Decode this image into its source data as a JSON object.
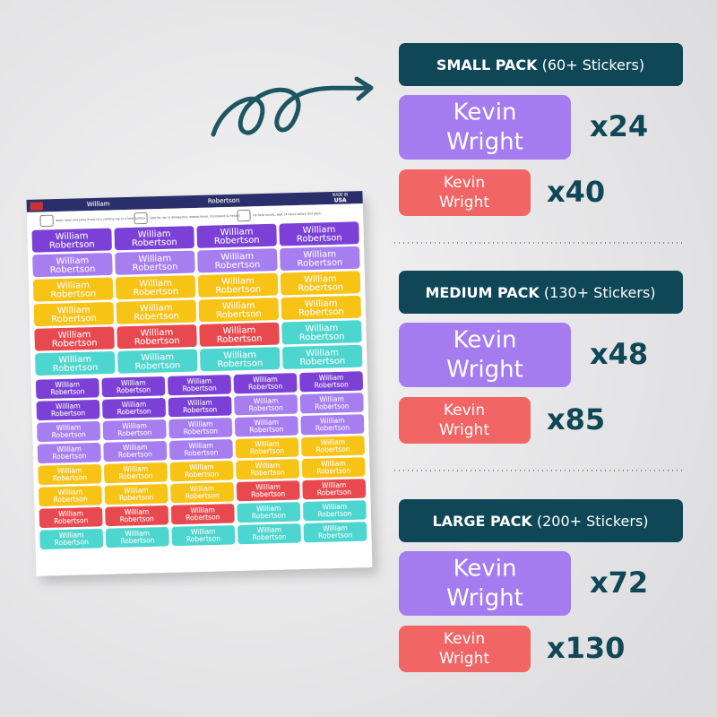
{
  "sheet": {
    "header_first": "William",
    "header_last": "Robertson",
    "made_in": "MADE IN",
    "usa": "USA",
    "instructions": [
      "Apply label and press firmly to a clothing tag or a hard surface.",
      "Safe for use in dishwasher, washer/dryer, microwave & freezer.",
      "For best results, wait 24 hours before first wash."
    ],
    "sticker_first": "William",
    "sticker_last": "Robertson"
  },
  "packs": [
    {
      "name": "SMALL PACK",
      "note": "(60+ Stickers)",
      "items": [
        {
          "first": "Kevin",
          "last": "Wright",
          "count": "x24"
        },
        {
          "first": "Kevin",
          "last": "Wright",
          "count": "x40"
        }
      ]
    },
    {
      "name": "MEDIUM PACK",
      "note": "(130+ Stickers)",
      "items": [
        {
          "first": "Kevin",
          "last": "Wright",
          "count": "x48"
        },
        {
          "first": "Kevin",
          "last": "Wright",
          "count": "x85"
        }
      ]
    },
    {
      "name": "LARGE PACK",
      "note": "(200+ Stickers)",
      "items": [
        {
          "first": "Kevin",
          "last": "Wright",
          "count": "x72"
        },
        {
          "first": "Kevin",
          "last": "Wright",
          "count": "x130"
        }
      ]
    }
  ]
}
